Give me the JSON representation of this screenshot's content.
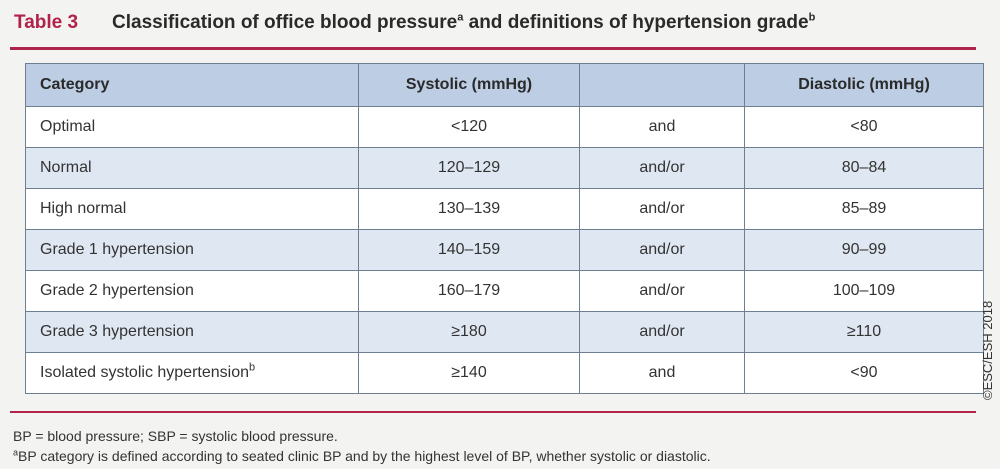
{
  "title": {
    "label": "Table 3",
    "text_part1": "Classification of office blood pressure",
    "sup1": "a",
    "text_part2": " and definitions of hypertension grade",
    "sup2": "b"
  },
  "table": {
    "headers": [
      "Category",
      "Systolic (mmHg)",
      "",
      "Diastolic (mmHg)"
    ],
    "rows": [
      {
        "category": "Optimal",
        "category_sup": "",
        "systolic": "<120",
        "conj": "and",
        "diastolic": "<80"
      },
      {
        "category": "Normal",
        "category_sup": "",
        "systolic": "120–129",
        "conj": "and/or",
        "diastolic": "80–84"
      },
      {
        "category": "High normal",
        "category_sup": "",
        "systolic": "130–139",
        "conj": "and/or",
        "diastolic": "85–89"
      },
      {
        "category": "Grade 1 hypertension",
        "category_sup": "",
        "systolic": "140–159",
        "conj": "and/or",
        "diastolic": "90–99"
      },
      {
        "category": "Grade 2 hypertension",
        "category_sup": "",
        "systolic": "160–179",
        "conj": "and/or",
        "diastolic": "100–109"
      },
      {
        "category": "Grade 3 hypertension",
        "category_sup": "",
        "systolic": "≥180",
        "conj": "and/or",
        "diastolic": "≥110"
      },
      {
        "category": "Isolated systolic hypertension",
        "category_sup": "b",
        "systolic": "≥140",
        "conj": "and",
        "diastolic": "<90"
      }
    ]
  },
  "copyright": "©ESC/ESH 2018",
  "footnotes": {
    "line1": "BP = blood pressure; SBP = systolic blood pressure.",
    "line2_sup": "a",
    "line2": "BP category is defined according to seated clinic BP and by the highest level of BP, whether systolic or diastolic."
  },
  "colors": {
    "accent": "#b0224a",
    "header_bg": "#bccde4",
    "alt_row_bg": "#dfe7f2"
  }
}
